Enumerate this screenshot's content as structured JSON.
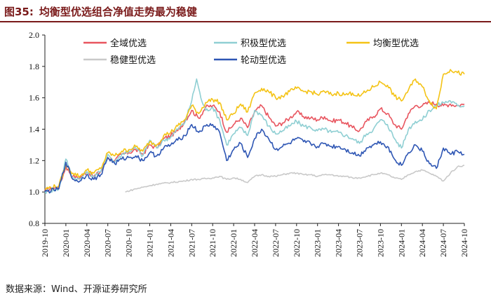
{
  "title": {
    "number": "图35:",
    "text": "均衡型优选组合净值走势最为稳健"
  },
  "source": "数据来源：Wind、开源证券研究所",
  "chart_data": {
    "type": "line",
    "title": "均衡型优选组合净值走势最为稳健",
    "xlabel": "",
    "ylabel": "",
    "ylim": [
      0.8,
      2.0
    ],
    "yticks": [
      "0.8",
      "1.0",
      "1.2",
      "1.4",
      "1.6",
      "1.8",
      "2.0"
    ],
    "xlim": [
      "2019-10",
      "2024-10"
    ],
    "xticks": [
      "2019-10",
      "2020-01",
      "2020-04",
      "2020-07",
      "2020-10",
      "2021-01",
      "2021-04",
      "2021-07",
      "2021-10",
      "2022-01",
      "2022-04",
      "2022-07",
      "2022-10",
      "2023-01",
      "2023-04",
      "2023-07",
      "2023-10",
      "2024-01",
      "2024-04",
      "2024-07",
      "2024-10"
    ],
    "legend_position": "top",
    "series": [
      {
        "name": "全域优选",
        "color": "#e8555f",
        "points": [
          [
            0,
            1.01
          ],
          [
            2,
            1.03
          ],
          [
            3,
            1.16
          ],
          [
            4,
            1.1
          ],
          [
            5,
            1.09
          ],
          [
            6,
            1.13
          ],
          [
            7,
            1.1
          ],
          [
            8,
            1.13
          ],
          [
            9,
            1.22
          ],
          [
            10,
            1.2
          ],
          [
            11,
            1.24
          ],
          [
            12,
            1.25
          ],
          [
            13,
            1.27
          ],
          [
            14,
            1.24
          ],
          [
            15,
            1.3
          ],
          [
            16,
            1.28
          ],
          [
            17,
            1.34
          ],
          [
            18,
            1.36
          ],
          [
            19,
            1.39
          ],
          [
            20,
            1.45
          ],
          [
            21,
            1.52
          ],
          [
            22,
            1.47
          ],
          [
            23,
            1.54
          ],
          [
            24,
            1.55
          ],
          [
            25,
            1.51
          ],
          [
            26,
            1.38
          ],
          [
            27,
            1.43
          ],
          [
            28,
            1.47
          ],
          [
            29,
            1.41
          ],
          [
            30,
            1.51
          ],
          [
            31,
            1.55
          ],
          [
            32,
            1.48
          ],
          [
            33,
            1.42
          ],
          [
            34,
            1.44
          ],
          [
            35,
            1.47
          ],
          [
            36,
            1.51
          ],
          [
            37,
            1.48
          ],
          [
            38,
            1.47
          ],
          [
            39,
            1.46
          ],
          [
            40,
            1.48
          ],
          [
            41,
            1.45
          ],
          [
            42,
            1.46
          ],
          [
            43,
            1.44
          ],
          [
            44,
            1.41
          ],
          [
            45,
            1.39
          ],
          [
            46,
            1.45
          ],
          [
            47,
            1.48
          ],
          [
            48,
            1.53
          ],
          [
            49,
            1.5
          ],
          [
            50,
            1.43
          ],
          [
            51,
            1.4
          ],
          [
            52,
            1.5
          ],
          [
            53,
            1.55
          ],
          [
            54,
            1.55
          ],
          [
            55,
            1.57
          ],
          [
            56,
            1.56
          ],
          [
            57,
            1.55
          ],
          [
            58,
            1.56
          ],
          [
            59,
            1.55
          ],
          [
            60,
            1.56
          ]
        ]
      },
      {
        "name": "积极型优选",
        "color": "#8fcfd3",
        "points": [
          [
            0,
            1.0
          ],
          [
            2,
            1.02
          ],
          [
            3,
            1.21
          ],
          [
            4,
            1.09
          ],
          [
            5,
            1.08
          ],
          [
            6,
            1.13
          ],
          [
            7,
            1.1
          ],
          [
            8,
            1.13
          ],
          [
            9,
            1.24
          ],
          [
            10,
            1.19
          ],
          [
            11,
            1.24
          ],
          [
            12,
            1.26
          ],
          [
            13,
            1.28
          ],
          [
            14,
            1.23
          ],
          [
            15,
            1.33
          ],
          [
            16,
            1.28
          ],
          [
            17,
            1.33
          ],
          [
            18,
            1.35
          ],
          [
            19,
            1.4
          ],
          [
            20,
            1.44
          ],
          [
            21,
            1.58
          ],
          [
            21.7,
            1.72
          ],
          [
            22.3,
            1.6
          ],
          [
            23,
            1.52
          ],
          [
            24,
            1.54
          ],
          [
            25,
            1.46
          ],
          [
            26,
            1.3
          ],
          [
            27,
            1.37
          ],
          [
            28,
            1.41
          ],
          [
            29,
            1.36
          ],
          [
            30,
            1.52
          ],
          [
            31,
            1.49
          ],
          [
            32,
            1.42
          ],
          [
            33,
            1.37
          ],
          [
            34,
            1.39
          ],
          [
            35,
            1.42
          ],
          [
            36,
            1.45
          ],
          [
            37,
            1.42
          ],
          [
            38,
            1.41
          ],
          [
            39,
            1.39
          ],
          [
            40,
            1.4
          ],
          [
            41,
            1.38
          ],
          [
            42,
            1.38
          ],
          [
            43,
            1.36
          ],
          [
            44,
            1.34
          ],
          [
            45,
            1.31
          ],
          [
            46,
            1.37
          ],
          [
            47,
            1.4
          ],
          [
            48,
            1.46
          ],
          [
            49,
            1.43
          ],
          [
            50,
            1.34
          ],
          [
            51,
            1.28
          ],
          [
            52,
            1.4
          ],
          [
            53,
            1.45
          ],
          [
            54,
            1.46
          ],
          [
            55,
            1.52
          ],
          [
            56,
            1.55
          ],
          [
            57,
            1.57
          ],
          [
            58,
            1.58
          ],
          [
            59,
            1.55
          ],
          [
            60,
            1.55
          ]
        ]
      },
      {
        "name": "均衡型优选",
        "color": "#f4c315",
        "points": [
          [
            0,
            1.02
          ],
          [
            2,
            1.04
          ],
          [
            3,
            1.17
          ],
          [
            4,
            1.12
          ],
          [
            5,
            1.1
          ],
          [
            6,
            1.14
          ],
          [
            7,
            1.12
          ],
          [
            8,
            1.15
          ],
          [
            9,
            1.25
          ],
          [
            10,
            1.23
          ],
          [
            11,
            1.26
          ],
          [
            12,
            1.27
          ],
          [
            13,
            1.29
          ],
          [
            14,
            1.26
          ],
          [
            15,
            1.32
          ],
          [
            16,
            1.3
          ],
          [
            17,
            1.36
          ],
          [
            18,
            1.38
          ],
          [
            19,
            1.42
          ],
          [
            20,
            1.46
          ],
          [
            21,
            1.55
          ],
          [
            22,
            1.5
          ],
          [
            23,
            1.57
          ],
          [
            24,
            1.59
          ],
          [
            25,
            1.57
          ],
          [
            26,
            1.46
          ],
          [
            27,
            1.5
          ],
          [
            28,
            1.56
          ],
          [
            29,
            1.51
          ],
          [
            30,
            1.63
          ],
          [
            31,
            1.66
          ],
          [
            32,
            1.64
          ],
          [
            33,
            1.6
          ],
          [
            34,
            1.61
          ],
          [
            35,
            1.64
          ],
          [
            36,
            1.66
          ],
          [
            37,
            1.64
          ],
          [
            38,
            1.64
          ],
          [
            39,
            1.62
          ],
          [
            40,
            1.64
          ],
          [
            41,
            1.62
          ],
          [
            42,
            1.63
          ],
          [
            43,
            1.62
          ],
          [
            44,
            1.63
          ],
          [
            45,
            1.61
          ],
          [
            46,
            1.64
          ],
          [
            47,
            1.67
          ],
          [
            48,
            1.7
          ],
          [
            49,
            1.68
          ],
          [
            50,
            1.61
          ],
          [
            51,
            1.58
          ],
          [
            52,
            1.65
          ],
          [
            53,
            1.72
          ],
          [
            54,
            1.67
          ],
          [
            55,
            1.58
          ],
          [
            56,
            1.53
          ],
          [
            57,
            1.75
          ],
          [
            58,
            1.78
          ],
          [
            59,
            1.76
          ],
          [
            60,
            1.75
          ]
        ]
      },
      {
        "name": "稳健型优选",
        "color": "#c9c9c9",
        "points": [
          [
            11.5,
            1.0
          ],
          [
            13,
            1.02
          ],
          [
            15,
            1.04
          ],
          [
            16,
            1.05
          ],
          [
            18,
            1.06
          ],
          [
            20,
            1.07
          ],
          [
            21,
            1.08
          ],
          [
            22,
            1.08
          ],
          [
            24,
            1.09
          ],
          [
            25,
            1.1
          ],
          [
            26,
            1.08
          ],
          [
            27,
            1.09
          ],
          [
            28,
            1.08
          ],
          [
            29,
            1.06
          ],
          [
            30,
            1.1
          ],
          [
            31,
            1.11
          ],
          [
            32,
            1.1
          ],
          [
            33,
            1.1
          ],
          [
            34,
            1.11
          ],
          [
            35,
            1.12
          ],
          [
            36,
            1.12
          ],
          [
            37,
            1.11
          ],
          [
            38,
            1.11
          ],
          [
            39,
            1.1
          ],
          [
            40,
            1.11
          ],
          [
            41,
            1.11
          ],
          [
            42,
            1.1
          ],
          [
            43,
            1.1
          ],
          [
            44,
            1.09
          ],
          [
            45,
            1.09
          ],
          [
            46,
            1.1
          ],
          [
            47,
            1.11
          ],
          [
            48,
            1.12
          ],
          [
            49,
            1.11
          ],
          [
            50,
            1.09
          ],
          [
            51,
            1.08
          ],
          [
            52,
            1.11
          ],
          [
            53,
            1.13
          ],
          [
            54,
            1.14
          ],
          [
            55,
            1.12
          ],
          [
            56,
            1.1
          ],
          [
            57,
            1.07
          ],
          [
            58,
            1.12
          ],
          [
            59,
            1.16
          ],
          [
            60,
            1.17
          ]
        ]
      },
      {
        "name": "轮动型优选",
        "color": "#2e56b4",
        "points": [
          [
            0,
            1.0
          ],
          [
            2,
            1.02
          ],
          [
            3,
            1.19
          ],
          [
            4,
            1.08
          ],
          [
            5,
            1.07
          ],
          [
            6,
            1.11
          ],
          [
            7,
            1.08
          ],
          [
            8,
            1.11
          ],
          [
            9,
            1.22
          ],
          [
            10,
            1.18
          ],
          [
            11,
            1.21
          ],
          [
            12,
            1.22
          ],
          [
            13,
            1.23
          ],
          [
            14,
            1.2
          ],
          [
            15,
            1.25
          ],
          [
            16,
            1.23
          ],
          [
            17,
            1.28
          ],
          [
            18,
            1.3
          ],
          [
            19,
            1.33
          ],
          [
            20,
            1.36
          ],
          [
            21,
            1.43
          ],
          [
            22,
            1.38
          ],
          [
            23,
            1.42
          ],
          [
            24,
            1.43
          ],
          [
            25,
            1.38
          ],
          [
            26,
            1.2
          ],
          [
            27,
            1.27
          ],
          [
            28,
            1.31
          ],
          [
            29,
            1.22
          ],
          [
            30,
            1.34
          ],
          [
            31,
            1.4
          ],
          [
            32,
            1.34
          ],
          [
            33,
            1.27
          ],
          [
            34,
            1.29
          ],
          [
            35,
            1.31
          ],
          [
            36,
            1.34
          ],
          [
            37,
            1.32
          ],
          [
            38,
            1.31
          ],
          [
            39,
            1.29
          ],
          [
            40,
            1.31
          ],
          [
            41,
            1.29
          ],
          [
            42,
            1.29
          ],
          [
            43,
            1.27
          ],
          [
            44,
            1.25
          ],
          [
            45,
            1.23
          ],
          [
            46,
            1.28
          ],
          [
            47,
            1.3
          ],
          [
            48,
            1.32
          ],
          [
            49,
            1.29
          ],
          [
            50,
            1.21
          ],
          [
            51,
            1.17
          ],
          [
            52,
            1.25
          ],
          [
            53,
            1.3
          ],
          [
            54,
            1.26
          ],
          [
            55,
            1.18
          ],
          [
            56,
            1.15
          ],
          [
            57,
            1.28
          ],
          [
            58,
            1.24
          ],
          [
            59,
            1.26
          ],
          [
            60,
            1.24
          ]
        ]
      }
    ]
  }
}
